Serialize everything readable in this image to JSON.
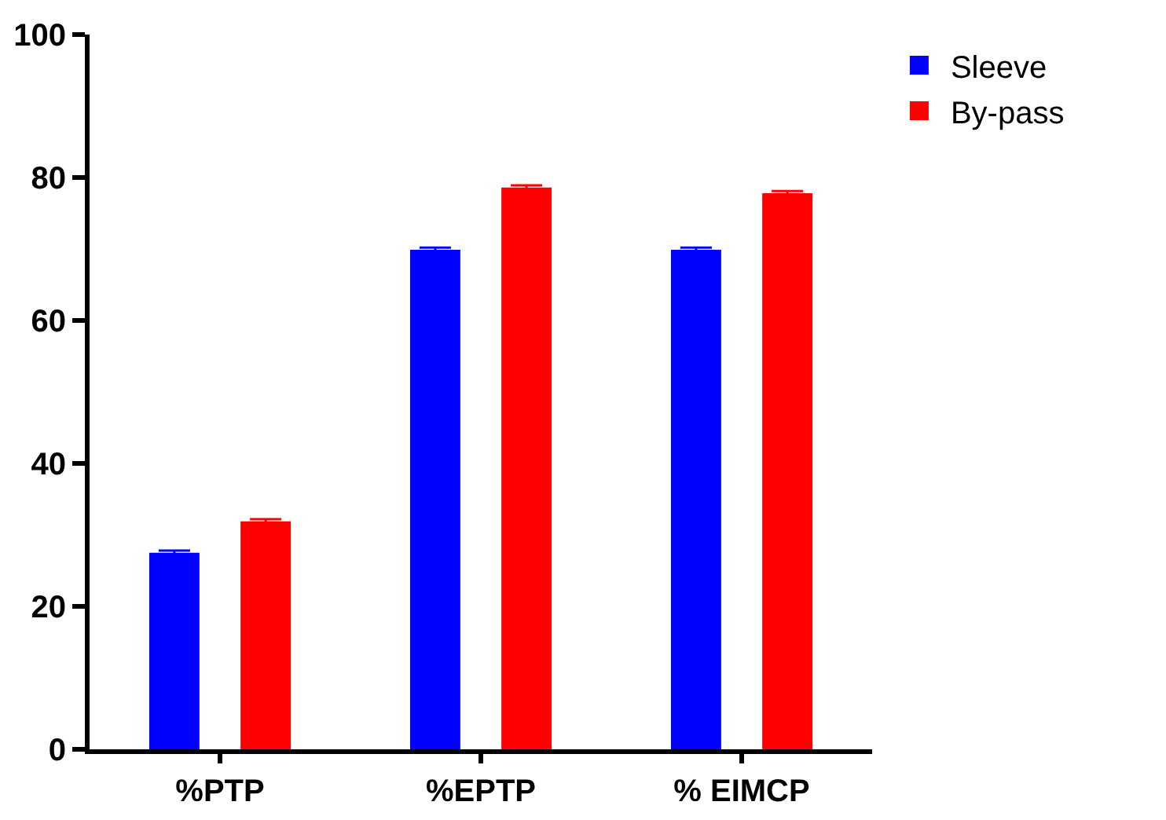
{
  "chart_data": {
    "type": "bar",
    "categories": [
      "%PTP",
      "%EPTP",
      "% EIMCP"
    ],
    "series": [
      {
        "name": "Sleeve",
        "color": "#0000ff",
        "values": [
          27.5,
          69.9,
          69.9
        ],
        "errors": [
          0.3,
          0.3,
          0.3
        ]
      },
      {
        "name": "By-pass",
        "color": "#ff0000",
        "values": [
          31.9,
          78.6,
          77.8
        ],
        "errors": [
          0.3,
          0.3,
          0.3
        ]
      }
    ],
    "ylim": [
      0,
      100
    ],
    "yticks": [
      0,
      20,
      40,
      60,
      80,
      100
    ],
    "grid": false,
    "legend": "top right"
  }
}
